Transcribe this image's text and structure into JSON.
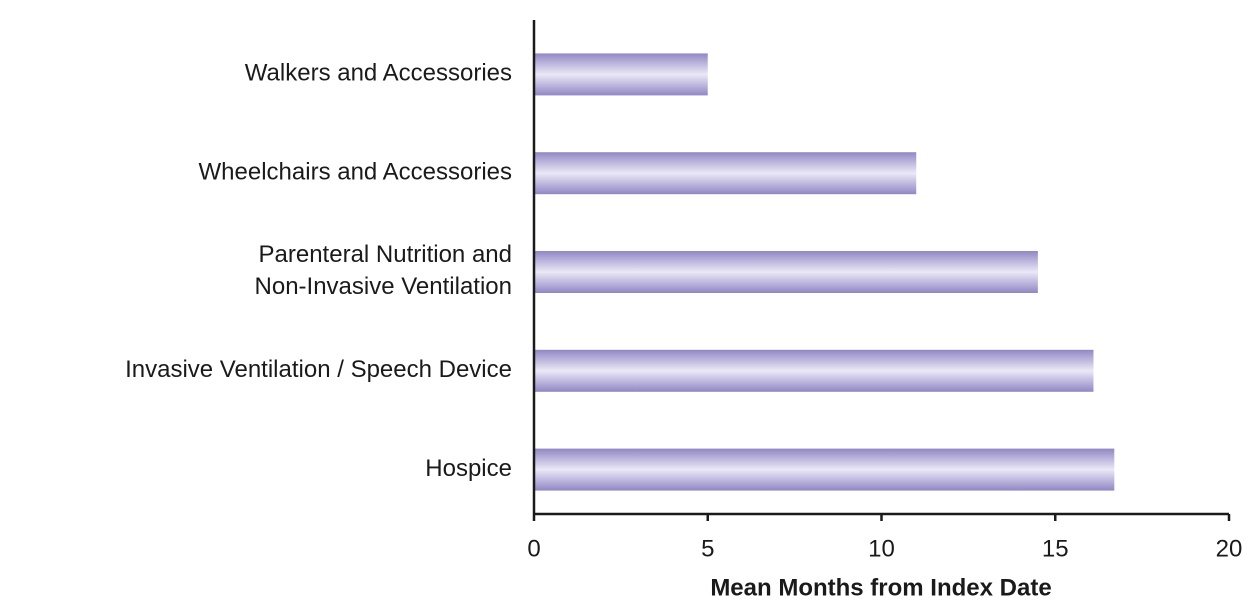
{
  "chart_data": {
    "type": "hbar",
    "categories": [
      "Walkers and Accessories",
      "Wheelchairs and Accessories",
      "Parenteral Nutrition and\nNon-Invasive Ventilation",
      "Invasive Ventilation / Speech Device",
      "Hospice"
    ],
    "values": [
      5,
      11,
      14.5,
      16.1,
      16.7
    ],
    "color": "#a99fd6",
    "xlabel": "Mean Months from Index Date",
    "xlim": [
      0,
      20
    ],
    "xticks": [
      0,
      5,
      10,
      15,
      20
    ],
    "grid": false
  }
}
